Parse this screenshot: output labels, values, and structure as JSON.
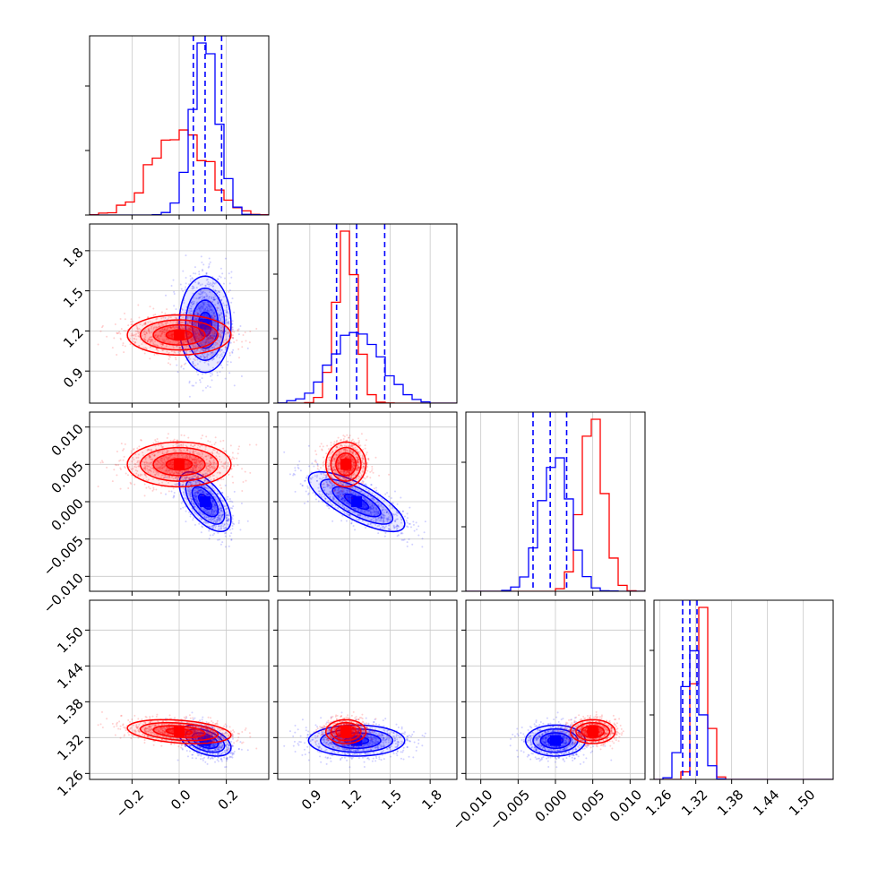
{
  "chart_data": {
    "type": "scatter",
    "kind": "corner-plot",
    "grid": true,
    "parameters": [
      {
        "range": [
          -0.38,
          0.38
        ],
        "ticks": [
          -0.2,
          0.0,
          0.2
        ],
        "tick_labels": [
          "−0.2",
          "0.0",
          "0.2"
        ]
      },
      {
        "range": [
          0.66,
          2.0
        ],
        "ticks": [
          0.9,
          1.2,
          1.5,
          1.8
        ],
        "tick_labels": [
          "0.9",
          "1.2",
          "1.5",
          "1.8"
        ]
      },
      {
        "range": [
          -0.012,
          0.012
        ],
        "ticks": [
          -0.01,
          -0.005,
          0.0,
          0.005,
          0.01
        ],
        "tick_labels": [
          "−0.010",
          "−0.005",
          "0.000",
          "0.005",
          "0.010"
        ]
      },
      {
        "range": [
          1.25,
          1.55
        ],
        "ticks": [
          1.26,
          1.32,
          1.38,
          1.44,
          1.5
        ],
        "tick_labels": [
          "1.26",
          "1.32",
          "1.38",
          "1.44",
          "1.50"
        ]
      }
    ],
    "series": [
      {
        "color": "#0000ff",
        "mean": [
          0.11,
          1.25,
          0.0,
          1.315
        ],
        "sd": [
          0.055,
          0.18,
          0.002,
          0.013
        ],
        "corr": [
          [
            0,
            2,
            -0.6
          ],
          [
            1,
            2,
            -0.75
          ],
          [
            0,
            3,
            -0.45
          ]
        ],
        "quantiles": [
          [
            0.06,
            0.11,
            0.18
          ],
          [
            1.1,
            1.25,
            1.46
          ],
          [
            -0.003,
            -0.0007,
            0.0015
          ],
          [
            1.298,
            1.31,
            1.322
          ]
        ]
      },
      {
        "color": "#ff0000",
        "mean": [
          0.0,
          1.17,
          0.005,
          1.33
        ],
        "sd": [
          0.11,
          0.075,
          0.0015,
          0.01
        ],
        "corr": [
          [
            0,
            3,
            -0.3
          ]
        ],
        "quantiles": []
      }
    ]
  }
}
